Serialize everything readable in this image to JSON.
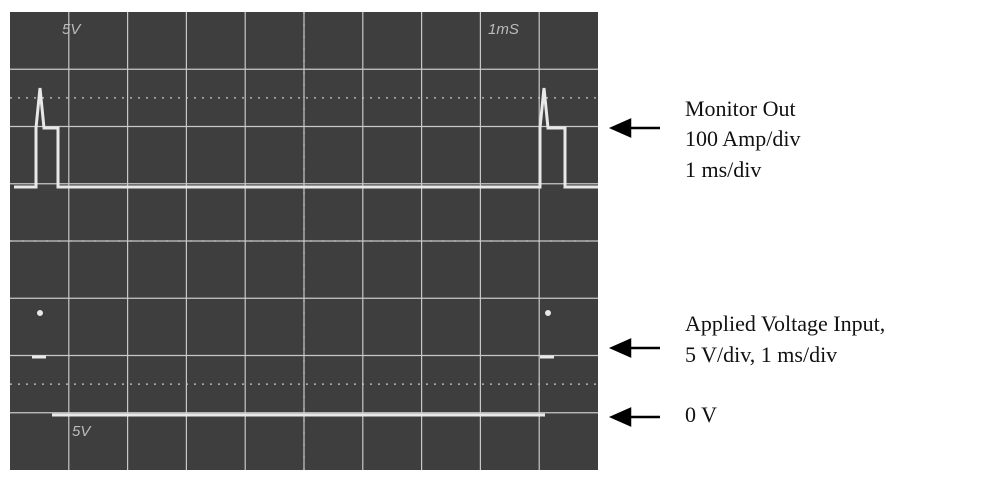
{
  "screen": {
    "top_left_label": "5V",
    "top_right_label": "1mS",
    "bottom_left_label": "5V"
  },
  "annotations": [
    {
      "lines": [
        "Monitor Out",
        "100 Amp/div",
        "1 ms/div"
      ]
    },
    {
      "lines": [
        "Applied Voltage Input,",
        "5 V/div, 1 ms/div"
      ]
    },
    {
      "lines": [
        "0 V"
      ]
    }
  ]
}
